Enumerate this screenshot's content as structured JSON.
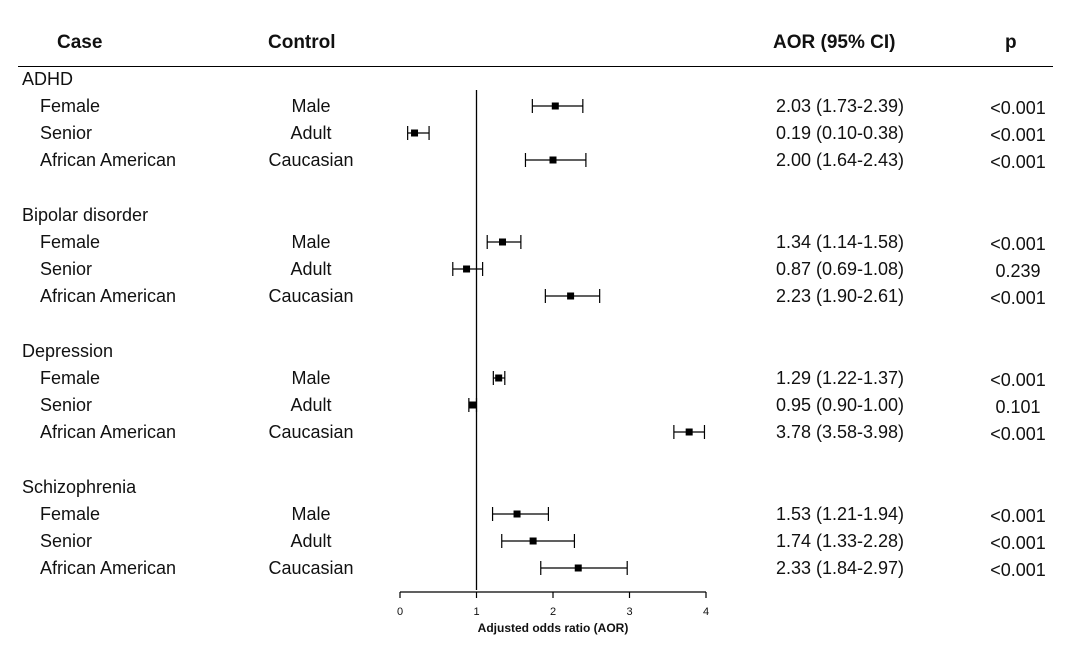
{
  "headers": {
    "case": "Case",
    "control": "Control",
    "aor": "AOR (95% CI)",
    "p": "p"
  },
  "chart_data": {
    "type": "forest",
    "xlabel": "Adjusted odds ratio (AOR)",
    "xlim": [
      0,
      4
    ],
    "xticks": [
      "0",
      "1",
      "2",
      "3",
      "4"
    ],
    "reference_line": 1,
    "groups": [
      {
        "name": "ADHD",
        "rows": [
          {
            "case": "Female",
            "control": "Male",
            "aor": 2.03,
            "lo": 1.73,
            "hi": 2.39,
            "ci_text": "2.03 (1.73-2.39)",
            "p": "<0.001"
          },
          {
            "case": "Senior",
            "control": "Adult",
            "aor": 0.19,
            "lo": 0.1,
            "hi": 0.38,
            "ci_text": "0.19 (0.10-0.38)",
            "p": "<0.001"
          },
          {
            "case": "African American",
            "control": "Caucasian",
            "aor": 2.0,
            "lo": 1.64,
            "hi": 2.43,
            "ci_text": "2.00 (1.64-2.43)",
            "p": "<0.001"
          }
        ]
      },
      {
        "name": "Bipolar disorder",
        "rows": [
          {
            "case": "Female",
            "control": "Male",
            "aor": 1.34,
            "lo": 1.14,
            "hi": 1.58,
            "ci_text": "1.34 (1.14-1.58)",
            "p": "<0.001"
          },
          {
            "case": "Senior",
            "control": "Adult",
            "aor": 0.87,
            "lo": 0.69,
            "hi": 1.08,
            "ci_text": "0.87 (0.69-1.08)",
            "p": "0.239"
          },
          {
            "case": "African American",
            "control": "Caucasian",
            "aor": 2.23,
            "lo": 1.9,
            "hi": 2.61,
            "ci_text": "2.23 (1.90-2.61)",
            "p": "<0.001"
          }
        ]
      },
      {
        "name": "Depression",
        "rows": [
          {
            "case": "Female",
            "control": "Male",
            "aor": 1.29,
            "lo": 1.22,
            "hi": 1.37,
            "ci_text": "1.29 (1.22-1.37)",
            "p": "<0.001"
          },
          {
            "case": "Senior",
            "control": "Adult",
            "aor": 0.95,
            "lo": 0.9,
            "hi": 1.0,
            "ci_text": "0.95 (0.90-1.00)",
            "p": "0.101"
          },
          {
            "case": "African American",
            "control": "Caucasian",
            "aor": 3.78,
            "lo": 3.58,
            "hi": 3.98,
            "ci_text": "3.78 (3.58-3.98)",
            "p": "<0.001"
          }
        ]
      },
      {
        "name": "Schizophrenia",
        "rows": [
          {
            "case": "Female",
            "control": "Male",
            "aor": 1.53,
            "lo": 1.21,
            "hi": 1.94,
            "ci_text": "1.53 (1.21-1.94)",
            "p": "<0.001"
          },
          {
            "case": "Senior",
            "control": "Adult",
            "aor": 1.74,
            "lo": 1.33,
            "hi": 2.28,
            "ci_text": "1.74 (1.33-2.28)",
            "p": "<0.001"
          },
          {
            "case": "African American",
            "control": "Caucasian",
            "aor": 2.33,
            "lo": 1.84,
            "hi": 2.97,
            "ci_text": "2.33 (1.84-2.97)",
            "p": "<0.001"
          }
        ]
      }
    ]
  }
}
